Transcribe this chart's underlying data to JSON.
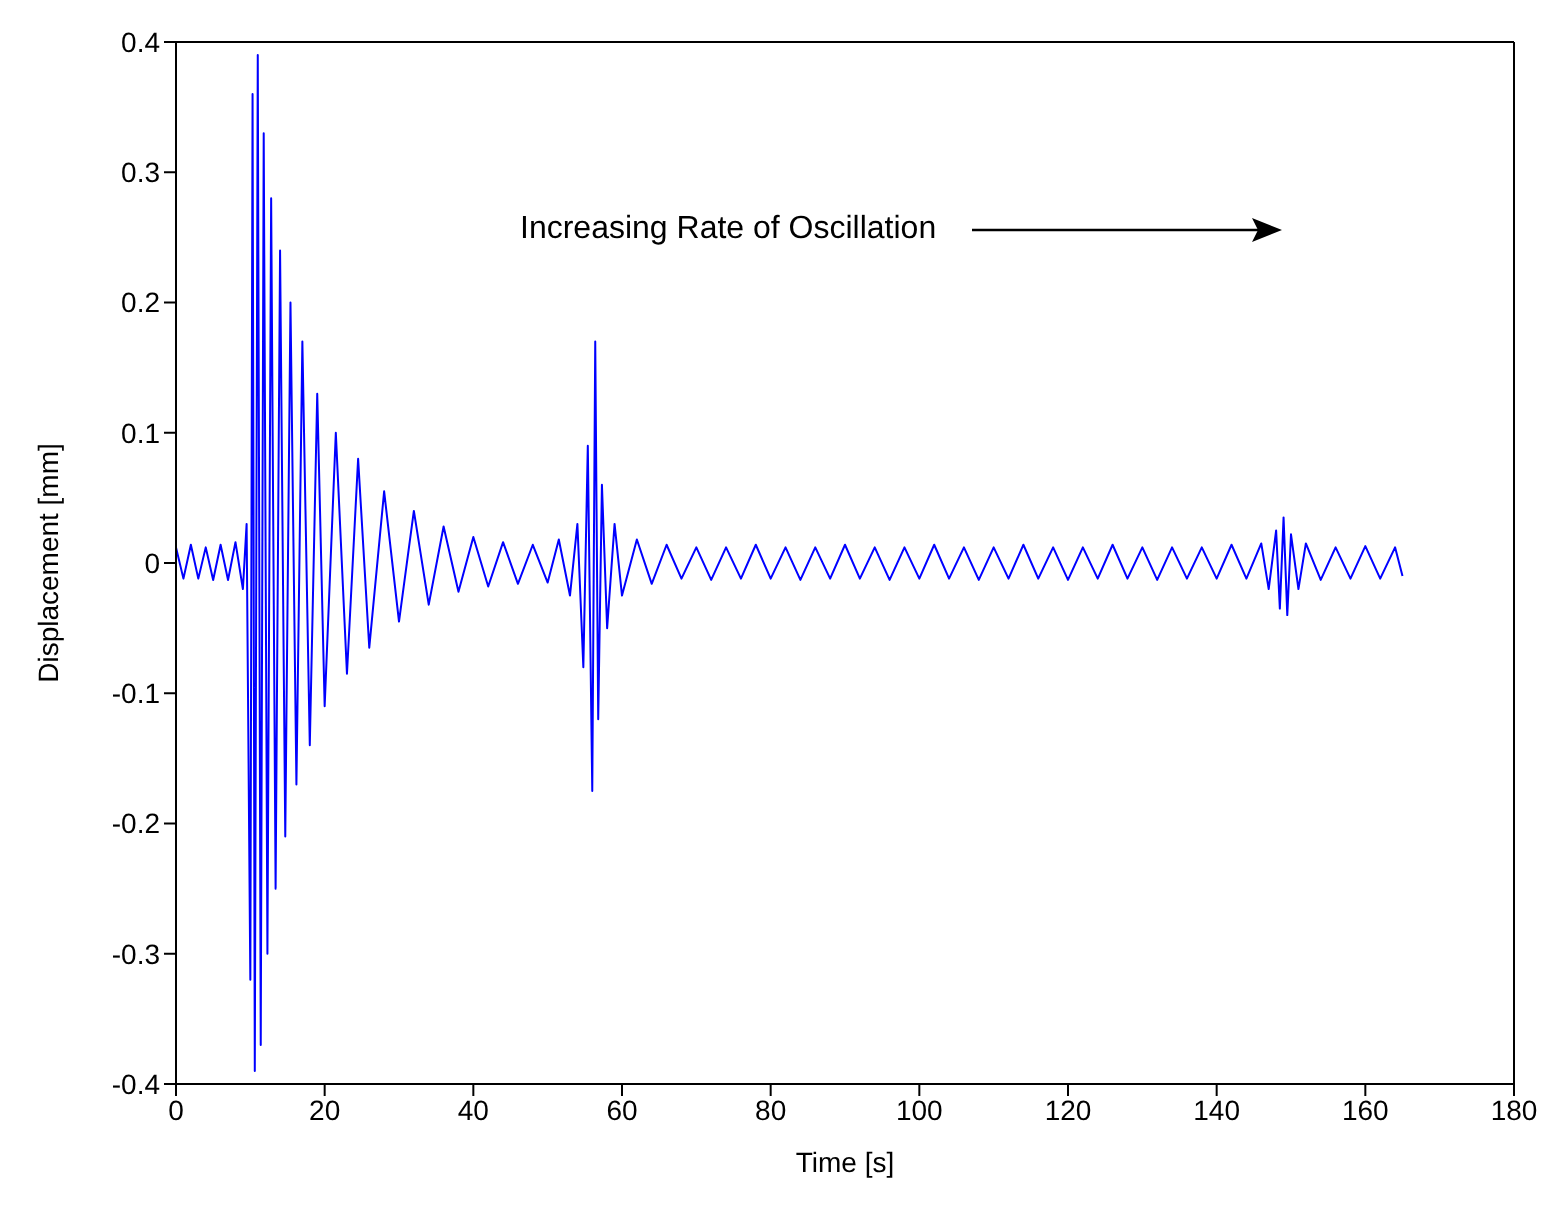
{
  "chart_data": {
    "type": "line",
    "xlabel": "Time [s]",
    "ylabel": "Displacement [mm]",
    "annotations": [
      "Increasing Rate of Oscillation"
    ],
    "xlim": [
      0,
      180
    ],
    "xticks": [
      0,
      20,
      40,
      60,
      80,
      100,
      120,
      140,
      160,
      180
    ],
    "ylim": [
      -0.4,
      0.4
    ],
    "yticks": [
      -0.4,
      -0.3,
      -0.2,
      -0.1,
      0,
      0.1,
      0.2,
      0.3,
      0.4
    ],
    "grid": false,
    "marker": "none",
    "line_style": "solid",
    "series": [
      {
        "color": "#0000ff",
        "x": [
          0,
          1,
          2,
          3,
          4,
          5,
          6,
          7,
          8,
          9,
          9.5,
          10,
          10.3,
          10.6,
          11,
          11.4,
          11.8,
          12.3,
          12.8,
          13.4,
          14,
          14.7,
          15.4,
          16.2,
          17,
          18,
          19,
          20,
          21.5,
          23,
          24.5,
          26,
          28,
          30,
          32,
          34,
          36,
          38,
          40,
          42,
          44,
          46,
          48,
          50,
          51.5,
          53,
          54,
          54.8,
          55.4,
          56,
          56.4,
          56.8,
          57.3,
          58,
          59,
          60,
          62,
          64,
          66,
          68,
          70,
          72,
          74,
          76,
          78,
          80,
          82,
          84,
          86,
          88,
          90,
          92,
          94,
          96,
          98,
          100,
          102,
          104,
          106,
          108,
          110,
          112,
          114,
          116,
          118,
          120,
          122,
          124,
          126,
          128,
          130,
          132,
          134,
          136,
          138,
          140,
          142,
          144,
          146,
          147,
          148,
          148.5,
          149,
          149.5,
          150,
          151,
          152,
          154,
          156,
          158,
          160,
          162,
          164,
          165
        ],
        "values": [
          0.012,
          -0.012,
          0.014,
          -0.012,
          0.012,
          -0.013,
          0.014,
          -0.013,
          0.016,
          -0.02,
          0.03,
          -0.32,
          0.36,
          -0.39,
          0.39,
          -0.37,
          0.33,
          -0.3,
          0.28,
          -0.25,
          0.24,
          -0.21,
          0.2,
          -0.17,
          0.17,
          -0.14,
          0.13,
          -0.11,
          0.1,
          -0.085,
          0.08,
          -0.065,
          0.055,
          -0.045,
          0.04,
          -0.032,
          0.028,
          -0.022,
          0.02,
          -0.018,
          0.016,
          -0.016,
          0.014,
          -0.015,
          0.018,
          -0.025,
          0.03,
          -0.08,
          0.09,
          -0.175,
          0.17,
          -0.12,
          0.06,
          -0.05,
          0.03,
          -0.025,
          0.018,
          -0.016,
          0.014,
          -0.012,
          0.012,
          -0.013,
          0.012,
          -0.012,
          0.014,
          -0.012,
          0.012,
          -0.013,
          0.012,
          -0.012,
          0.014,
          -0.012,
          0.012,
          -0.013,
          0.012,
          -0.012,
          0.014,
          -0.012,
          0.012,
          -0.013,
          0.012,
          -0.012,
          0.014,
          -0.012,
          0.012,
          -0.013,
          0.012,
          -0.012,
          0.014,
          -0.012,
          0.012,
          -0.013,
          0.012,
          -0.012,
          0.012,
          -0.012,
          0.014,
          -0.012,
          0.015,
          -0.02,
          0.025,
          -0.035,
          0.035,
          -0.04,
          0.022,
          -0.02,
          0.015,
          -0.013,
          0.012,
          -0.012,
          0.013,
          -0.012,
          0.012,
          -0.01
        ]
      }
    ]
  }
}
